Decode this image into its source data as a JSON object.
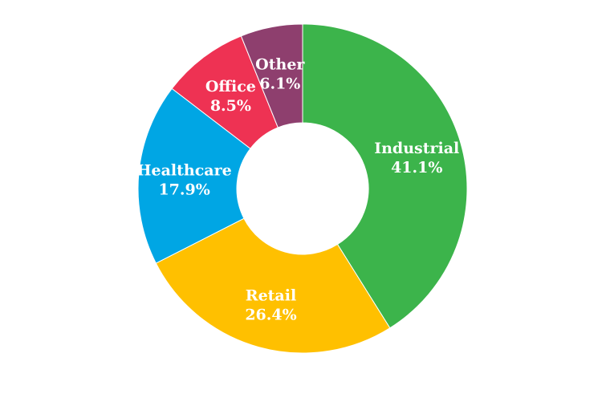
{
  "chart_data": {
    "type": "pie",
    "style": "donut",
    "title": "",
    "legend": "none",
    "slices": [
      {
        "label": "Industrial",
        "value": 41.1,
        "value_label": "41.1%",
        "color": "#3cb44b"
      },
      {
        "label": "Retail",
        "value": 26.4,
        "value_label": "26.4%",
        "color": "#ffc000"
      },
      {
        "label": "Healthcare",
        "value": 17.9,
        "value_label": "17.9%",
        "color": "#00a6e4"
      },
      {
        "label": "Office",
        "value": 8.5,
        "value_label": "8.5%",
        "color": "#ee3253"
      },
      {
        "label": "Other",
        "value": 6.1,
        "value_label": "6.1%",
        "color": "#8e3f6e"
      }
    ]
  }
}
